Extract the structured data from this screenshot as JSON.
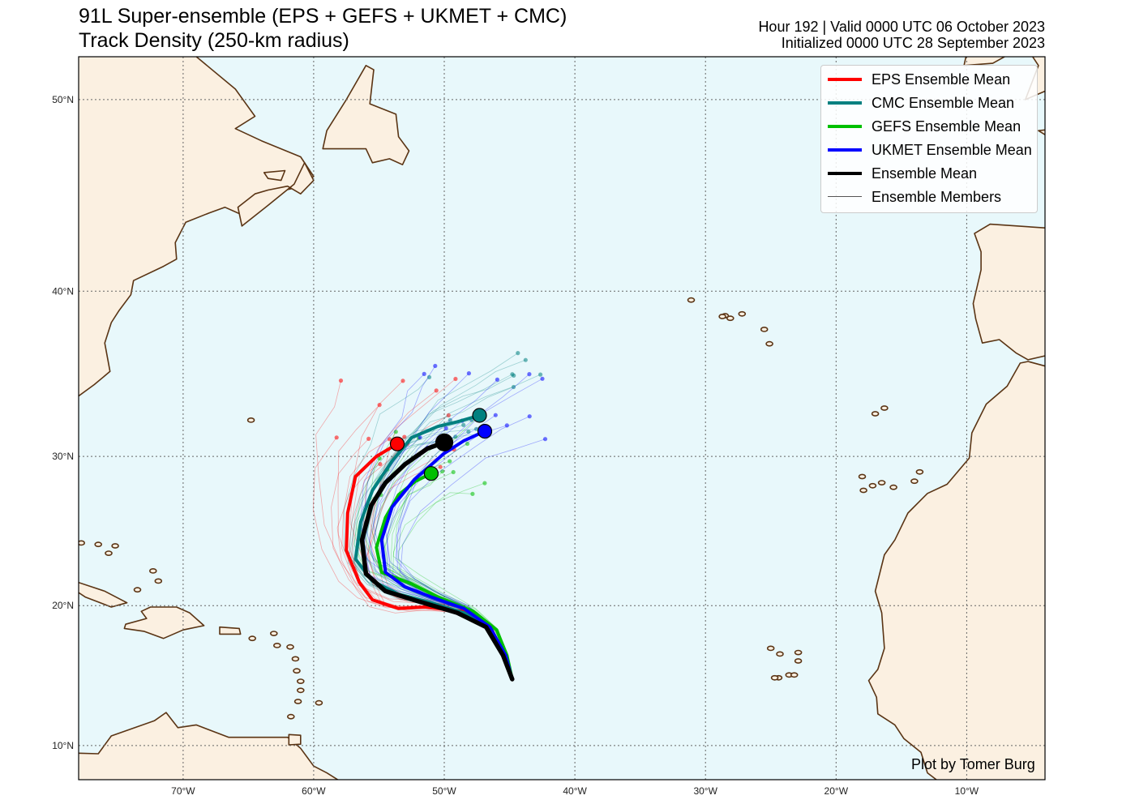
{
  "header": {
    "title_line1": "91L Super-ensemble (EPS + GEFS + UKMET + CMC)",
    "title_line2": "Track Density (250-km radius)",
    "valid_line": "Hour 192 | Valid 0000 UTC 06 October 2023",
    "init_line": "Initialized 0000 UTC 28 September 2023"
  },
  "legend": {
    "items": [
      {
        "label": "EPS Ensemble Mean",
        "color": "#ff0000",
        "kind": "mean"
      },
      {
        "label": "CMC Ensemble Mean",
        "color": "#008080",
        "kind": "mean"
      },
      {
        "label": "GEFS Ensemble Mean",
        "color": "#00c000",
        "kind": "mean"
      },
      {
        "label": "UKMET Ensemble Mean",
        "color": "#0000ff",
        "kind": "mean"
      },
      {
        "label": "Ensemble Mean",
        "color": "#000000",
        "kind": "mean"
      },
      {
        "label": "Ensemble Members",
        "color": "#555555",
        "kind": "member"
      }
    ]
  },
  "credit": "Plot by Tomer Burg",
  "colors": {
    "ocean": "#e8f8fb",
    "land": "#fbf0e1",
    "coast": "#5a3414",
    "grid": "#666666"
  },
  "map": {
    "lon_range": [
      -78,
      -4
    ],
    "lat_range": [
      7.5,
      52
    ],
    "lat_ticks": [
      {
        "value": 10,
        "label": "10°N"
      },
      {
        "value": 20,
        "label": "20°N"
      },
      {
        "value": 30,
        "label": "30°N"
      },
      {
        "value": 40,
        "label": "40°N"
      },
      {
        "value": 50,
        "label": "50°N"
      }
    ],
    "lon_ticks": [
      {
        "value": -70,
        "label": "70°W"
      },
      {
        "value": -60,
        "label": "60°W"
      },
      {
        "value": -50,
        "label": "50°W"
      },
      {
        "value": -40,
        "label": "40°W"
      },
      {
        "value": -30,
        "label": "30°W"
      },
      {
        "value": -20,
        "label": "20°W"
      },
      {
        "value": -10,
        "label": "10°W"
      }
    ]
  },
  "tracks": {
    "mean_tracks": [
      {
        "name": "EPS Ensemble Mean",
        "color": "#ff0000",
        "points": [
          [
            -44.8,
            14.8
          ],
          [
            -45.5,
            16.5
          ],
          [
            -46.5,
            18.5
          ],
          [
            -48.5,
            19.6
          ],
          [
            -51.5,
            19.9
          ],
          [
            -53.5,
            19.8
          ],
          [
            -55.5,
            20.4
          ],
          [
            -56.5,
            21.6
          ],
          [
            -57.5,
            23.8
          ],
          [
            -57.4,
            26.3
          ],
          [
            -56.8,
            28.7
          ],
          [
            -55.2,
            30.0
          ],
          [
            -53.6,
            30.8
          ]
        ],
        "end": [
          -53.6,
          30.8
        ]
      },
      {
        "name": "CMC Ensemble Mean",
        "color": "#008080",
        "points": [
          [
            -44.8,
            14.8
          ],
          [
            -45.5,
            16.5
          ],
          [
            -46.5,
            18.4
          ],
          [
            -48.5,
            19.5
          ],
          [
            -51.0,
            20.2
          ],
          [
            -53.5,
            20.8
          ],
          [
            -55.5,
            21.7
          ],
          [
            -56.8,
            23.2
          ],
          [
            -56.4,
            25.7
          ],
          [
            -55.5,
            27.8
          ],
          [
            -54.0,
            29.7
          ],
          [
            -52.5,
            31.2
          ],
          [
            -50.5,
            31.9
          ],
          [
            -49.0,
            32.2
          ],
          [
            -47.3,
            32.6
          ]
        ],
        "end": [
          -47.3,
          32.6
        ]
      },
      {
        "name": "GEFS Ensemble Mean",
        "color": "#00c000",
        "points": [
          [
            -44.8,
            14.8
          ],
          [
            -45.2,
            16.5
          ],
          [
            -46.0,
            18.3
          ],
          [
            -47.8,
            19.6
          ],
          [
            -50.5,
            20.6
          ],
          [
            -52.5,
            21.5
          ],
          [
            -54.8,
            22.3
          ],
          [
            -55.2,
            24.0
          ],
          [
            -54.5,
            26.0
          ],
          [
            -53.5,
            27.5
          ],
          [
            -52.2,
            28.4
          ],
          [
            -51.0,
            28.9
          ]
        ],
        "end": [
          -51.0,
          28.9
        ]
      },
      {
        "name": "UKMET Ensemble Mean",
        "color": "#0000ff",
        "points": [
          [
            -44.8,
            14.8
          ],
          [
            -45.3,
            16.5
          ],
          [
            -46.5,
            18.5
          ],
          [
            -48.5,
            19.8
          ],
          [
            -51.0,
            20.6
          ],
          [
            -53.0,
            21.3
          ],
          [
            -54.5,
            22.3
          ],
          [
            -54.8,
            24.5
          ],
          [
            -54.0,
            26.7
          ],
          [
            -52.3,
            28.5
          ],
          [
            -50.0,
            30.2
          ],
          [
            -48.5,
            31.0
          ],
          [
            -46.9,
            31.6
          ]
        ],
        "end": [
          -46.9,
          31.6
        ]
      },
      {
        "name": "Ensemble Mean",
        "color": "#000000",
        "points": [
          [
            -44.8,
            14.8
          ],
          [
            -45.5,
            16.5
          ],
          [
            -46.8,
            18.5
          ],
          [
            -49.0,
            19.5
          ],
          [
            -52.0,
            20.3
          ],
          [
            -54.5,
            21.0
          ],
          [
            -56.0,
            22.2
          ],
          [
            -56.3,
            24.5
          ],
          [
            -55.6,
            26.8
          ],
          [
            -54.5,
            28.3
          ],
          [
            -53.0,
            29.5
          ],
          [
            -51.3,
            30.5
          ],
          [
            -50.0,
            30.9
          ]
        ],
        "end": [
          -50.0,
          30.9
        ]
      }
    ]
  }
}
